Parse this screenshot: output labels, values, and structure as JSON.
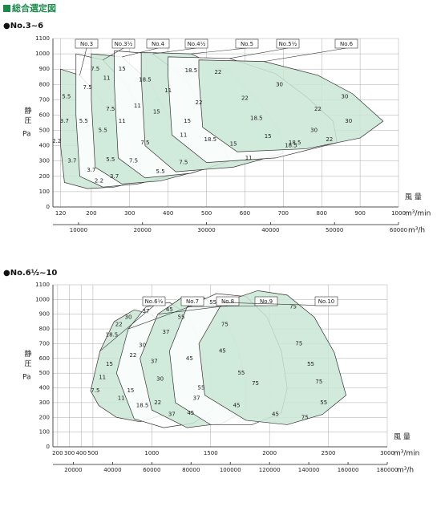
{
  "header": {
    "title": "総合選定図"
  },
  "chart_data": [
    {
      "type": "selection",
      "title": "●No.3~6",
      "y_label": "静 圧",
      "y_unit": "Pa",
      "x_label": "風 量",
      "x_unit": "m³/min",
      "x2_unit": "m³/h",
      "xlim": [
        100,
        1000
      ],
      "xticks": [
        120,
        200,
        300,
        400,
        500,
        600,
        700,
        800,
        900,
        1000
      ],
      "x2lim": [
        6000,
        60000
      ],
      "x2ticks": [
        10000,
        20000,
        30000,
        40000,
        50000,
        60000
      ],
      "ylim": [
        0,
        1100
      ],
      "yticks": [
        0,
        100,
        200,
        300,
        400,
        500,
        600,
        700,
        800,
        900,
        1000,
        1100
      ],
      "grid": true,
      "series": [
        {
          "name": "No.3",
          "color": "#c9e6d5",
          "x": [
            120,
            170,
            220,
            270,
            310,
            330,
            260,
            190,
            130,
            120
          ],
          "y": [
            900,
            860,
            720,
            520,
            320,
            170,
            130,
            120,
            160,
            400
          ],
          "labels": [
            {
              "text": "5.5",
              "x": 135,
              "y": 720
            },
            {
              "text": "3.7",
              "x": 130,
              "y": 560
            },
            {
              "text": "2.2",
              "x": 110,
              "y": 430
            },
            {
              "text": "3.7",
              "x": 150,
              "y": 300
            },
            {
              "text": "2.2",
              "x": 220,
              "y": 170
            },
            {
              "text": "3.7",
              "x": 200,
              "y": 240
            },
            {
              "text": "5.5",
              "x": 180,
              "y": 560
            },
            {
              "text": "7.5",
              "x": 190,
              "y": 780
            }
          ]
        },
        {
          "name": "No.3½",
          "color": "#ffffff",
          "x": [
            160,
            230,
            290,
            340,
            380,
            400,
            320,
            230,
            170,
            160
          ],
          "y": [
            1000,
            960,
            800,
            580,
            340,
            200,
            150,
            130,
            200,
            600
          ],
          "labels": [
            {
              "text": "7.5",
              "x": 210,
              "y": 900
            },
            {
              "text": "5.5",
              "x": 230,
              "y": 500
            },
            {
              "text": "7.5",
              "x": 250,
              "y": 640
            },
            {
              "text": "11",
              "x": 280,
              "y": 560
            },
            {
              "text": "3.7",
              "x": 260,
              "y": 200
            },
            {
              "text": "5.5",
              "x": 250,
              "y": 310
            }
          ]
        },
        {
          "name": "No.4",
          "color": "#c9e6d5",
          "x": [
            200,
            280,
            350,
            400,
            450,
            470,
            380,
            280,
            210,
            200
          ],
          "y": [
            1000,
            980,
            820,
            600,
            380,
            230,
            170,
            150,
            260,
            700
          ],
          "labels": [
            {
              "text": "11",
              "x": 240,
              "y": 840
            },
            {
              "text": "15",
              "x": 280,
              "y": 900
            },
            {
              "text": "11",
              "x": 320,
              "y": 660
            },
            {
              "text": "7.5",
              "x": 340,
              "y": 420
            },
            {
              "text": "5.5",
              "x": 380,
              "y": 230
            },
            {
              "text": "7.5",
              "x": 310,
              "y": 300
            }
          ]
        },
        {
          "name": "No.4½",
          "color": "#ffffff",
          "x": [
            260,
            360,
            440,
            500,
            540,
            560,
            460,
            340,
            270,
            260
          ],
          "y": [
            1020,
            1000,
            850,
            620,
            420,
            300,
            220,
            190,
            320,
            800
          ],
          "labels": [
            {
              "text": "18.5",
              "x": 340,
              "y": 830
            },
            {
              "text": "15",
              "x": 370,
              "y": 620
            },
            {
              "text": "11",
              "x": 400,
              "y": 760
            },
            {
              "text": "11",
              "x": 440,
              "y": 470
            },
            {
              "text": "7.5",
              "x": 440,
              "y": 290
            }
          ]
        },
        {
          "name": "No.5",
          "color": "#c9e6d5",
          "x": [
            330,
            460,
            560,
            630,
            690,
            700,
            570,
            420,
            340,
            330
          ],
          "y": [
            1010,
            1000,
            880,
            700,
            500,
            350,
            260,
            230,
            400,
            850
          ],
          "labels": [
            {
              "text": "18.5",
              "x": 460,
              "y": 890
            },
            {
              "text": "22",
              "x": 480,
              "y": 680
            },
            {
              "text": "15",
              "x": 450,
              "y": 560
            },
            {
              "text": "18.5",
              "x": 510,
              "y": 440
            },
            {
              "text": "15",
              "x": 570,
              "y": 410
            },
            {
              "text": "11",
              "x": 610,
              "y": 320
            }
          ]
        },
        {
          "name": "No.5½",
          "color": "#ffffff",
          "x": [
            400,
            560,
            680,
            760,
            830,
            840,
            680,
            500,
            410,
            400
          ],
          "y": [
            980,
            970,
            870,
            720,
            560,
            420,
            320,
            290,
            470,
            850
          ],
          "labels": [
            {
              "text": "22",
              "x": 530,
              "y": 880
            },
            {
              "text": "22",
              "x": 600,
              "y": 710
            },
            {
              "text": "18.5",
              "x": 630,
              "y": 580
            },
            {
              "text": "15",
              "x": 660,
              "y": 460
            },
            {
              "text": "18.5",
              "x": 720,
              "y": 400
            },
            {
              "text": "30",
              "x": 690,
              "y": 800
            }
          ]
        },
        {
          "name": "No.6",
          "color": "#c9e6d5",
          "x": [
            480,
            650,
            790,
            880,
            960,
            900,
            760,
            580,
            490,
            480
          ],
          "y": [
            960,
            950,
            860,
            740,
            560,
            450,
            380,
            360,
            520,
            850
          ],
          "labels": [
            {
              "text": "30",
              "x": 860,
              "y": 720
            },
            {
              "text": "30",
              "x": 870,
              "y": 560
            },
            {
              "text": "22",
              "x": 790,
              "y": 640
            },
            {
              "text": "30",
              "x": 780,
              "y": 500
            },
            {
              "text": "22",
              "x": 820,
              "y": 440
            },
            {
              "text": "18.5",
              "x": 730,
              "y": 420
            }
          ]
        }
      ]
    },
    {
      "type": "selection",
      "title": "●No.6½~10",
      "y_label": "静 圧",
      "y_unit": "Pa",
      "x_label": "風 量",
      "x_unit": "m³/min",
      "x2_unit": "m³/h",
      "xlim": [
        160,
        3000
      ],
      "xticks": [
        200,
        300,
        400,
        500,
        1000,
        1500,
        2000,
        2500,
        3000
      ],
      "x2lim": [
        9600,
        180000
      ],
      "x2ticks": [
        20000,
        40000,
        60000,
        80000,
        100000,
        120000,
        140000,
        160000,
        180000
      ],
      "ylim": [
        0,
        1100
      ],
      "yticks": [
        0,
        100,
        200,
        300,
        400,
        500,
        600,
        700,
        800,
        900,
        1000,
        1100
      ],
      "grid": true,
      "series": [
        {
          "name": "No.6½",
          "color": "#c9e6d5",
          "x": [
            480,
            560,
            680,
            850,
            1000,
            1150,
            1250,
            1300,
            1150,
            900,
            700,
            550
          ],
          "y": [
            380,
            650,
            850,
            930,
            900,
            750,
            550,
            350,
            230,
            170,
            200,
            280
          ],
          "labels": [
            {
              "text": "7.5",
              "x": 520,
              "y": 380
            },
            {
              "text": "11",
              "x": 580,
              "y": 470
            },
            {
              "text": "15",
              "x": 640,
              "y": 560
            },
            {
              "text": "18.5",
              "x": 660,
              "y": 760
            },
            {
              "text": "22",
              "x": 720,
              "y": 830
            },
            {
              "text": "30",
              "x": 800,
              "y": 880
            },
            {
              "text": "11",
              "x": 740,
              "y": 330
            },
            {
              "text": "15",
              "x": 820,
              "y": 380
            },
            {
              "text": "18.5",
              "x": 920,
              "y": 280
            }
          ]
        },
        {
          "name": "No.7",
          "color": "#ffffff",
          "x": [
            700,
            800,
            950,
            1150,
            1300,
            1420,
            1500,
            1520,
            1350,
            1100,
            850
          ],
          "y": [
            500,
            800,
            950,
            980,
            900,
            700,
            450,
            250,
            160,
            130,
            190
          ],
          "labels": [
            {
              "text": "37",
              "x": 950,
              "y": 920
            },
            {
              "text": "30",
              "x": 920,
              "y": 690
            },
            {
              "text": "22",
              "x": 840,
              "y": 620
            },
            {
              "text": "37",
              "x": 1020,
              "y": 580
            },
            {
              "text": "30",
              "x": 1070,
              "y": 460
            },
            {
              "text": "37",
              "x": 1170,
              "y": 220
            },
            {
              "text": "22",
              "x": 1050,
              "y": 300
            }
          ]
        },
        {
          "name": "No.8",
          "color": "#c9e6d5",
          "x": [
            900,
            1050,
            1250,
            1450,
            1600,
            1720,
            1800,
            1800,
            1600,
            1300,
            1000
          ],
          "y": [
            600,
            900,
            1010,
            1010,
            900,
            700,
            450,
            250,
            160,
            130,
            250
          ],
          "labels": [
            {
              "text": "45",
              "x": 1150,
              "y": 930
            },
            {
              "text": "55",
              "x": 1250,
              "y": 880
            },
            {
              "text": "37",
              "x": 1120,
              "y": 780
            },
            {
              "text": "45",
              "x": 1320,
              "y": 600
            },
            {
              "text": "55",
              "x": 1420,
              "y": 400
            },
            {
              "text": "45",
              "x": 1330,
              "y": 230
            },
            {
              "text": "37",
              "x": 1380,
              "y": 330
            }
          ]
        },
        {
          "name": "No.9",
          "color": "#ffffff",
          "x": [
            1150,
            1300,
            1550,
            1800,
            1980,
            2100,
            2150,
            2100,
            1850,
            1500,
            1200
          ],
          "y": [
            650,
            950,
            1040,
            1020,
            880,
            650,
            400,
            230,
            150,
            150,
            300
          ],
          "labels": [
            {
              "text": "55",
              "x": 1520,
              "y": 980
            },
            {
              "text": "75",
              "x": 1620,
              "y": 830
            },
            {
              "text": "45",
              "x": 1600,
              "y": 650
            },
            {
              "text": "55",
              "x": 1760,
              "y": 500
            },
            {
              "text": "45",
              "x": 1720,
              "y": 280
            },
            {
              "text": "75",
              "x": 1880,
              "y": 430
            }
          ]
        },
        {
          "name": "No.10",
          "color": "#c9e6d5",
          "x": [
            1400,
            1600,
            1900,
            2150,
            2380,
            2550,
            2650,
            2450,
            2150,
            1800,
            1450
          ],
          "y": [
            700,
            980,
            1060,
            1030,
            880,
            640,
            350,
            220,
            150,
            180,
            350
          ],
          "labels": [
            {
              "text": "75",
              "x": 2200,
              "y": 950
            },
            {
              "text": "75",
              "x": 2250,
              "y": 700
            },
            {
              "text": "55",
              "x": 2350,
              "y": 560
            },
            {
              "text": "75",
              "x": 2420,
              "y": 440
            },
            {
              "text": "55",
              "x": 2460,
              "y": 300
            },
            {
              "text": "45",
              "x": 2050,
              "y": 220
            },
            {
              "text": "75",
              "x": 2300,
              "y": 200
            }
          ]
        }
      ]
    }
  ]
}
